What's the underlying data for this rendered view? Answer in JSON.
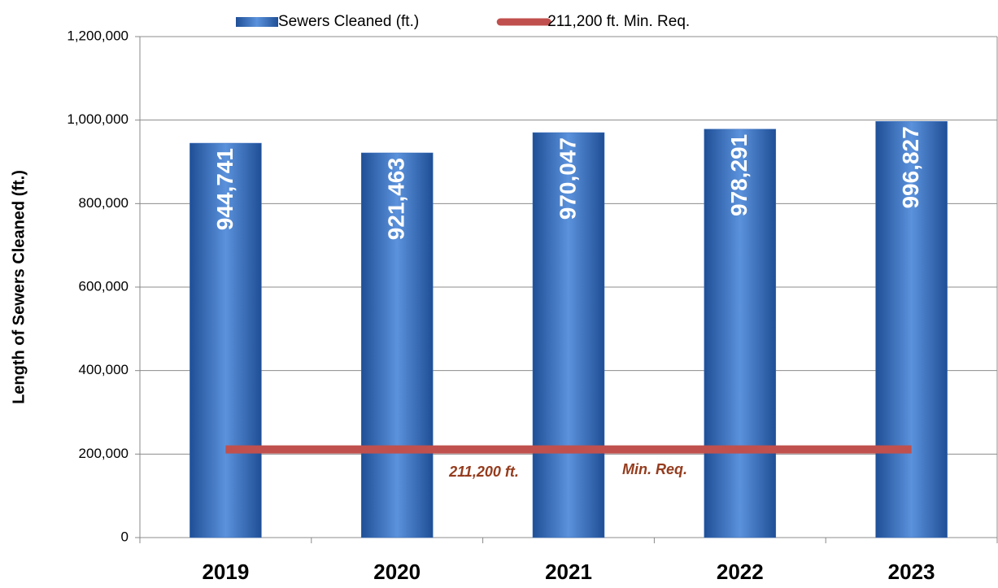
{
  "chart_data": {
    "type": "bar",
    "y_label": "Length of  Sewers Cleaned (ft.)",
    "categories": [
      "2019",
      "2020",
      "2021",
      "2022",
      "2023"
    ],
    "series": [
      {
        "name": "Sewers Cleaned (ft.)",
        "type": "bar",
        "color": "#3a6fbf",
        "values": [
          944741,
          921463,
          970047,
          978291,
          996827
        ],
        "value_labels": [
          "944,741",
          "921,463",
          "970,047",
          "978,291",
          "996,827"
        ]
      },
      {
        "name": "211,200 ft. Min. Req.",
        "type": "line",
        "color": "#c0504d",
        "values": [
          211200,
          211200,
          211200,
          211200,
          211200
        ]
      }
    ],
    "annotations": [
      "211,200  ft.",
      "Min. Req."
    ],
    "ylim": [
      0,
      1200000
    ],
    "yticks": [
      0,
      {
        "value": 200000,
        "label": "200,000"
      },
      {
        "value": 400000,
        "label": "400,000"
      },
      {
        "value": 600000,
        "label": "600,000"
      },
      {
        "value": 800000,
        "label": "800,000"
      },
      {
        "value": 1000000,
        "label": "1,000,000"
      },
      {
        "value": 1200000,
        "label": "1,200,000"
      }
    ],
    "grid": true,
    "legend": "top"
  }
}
